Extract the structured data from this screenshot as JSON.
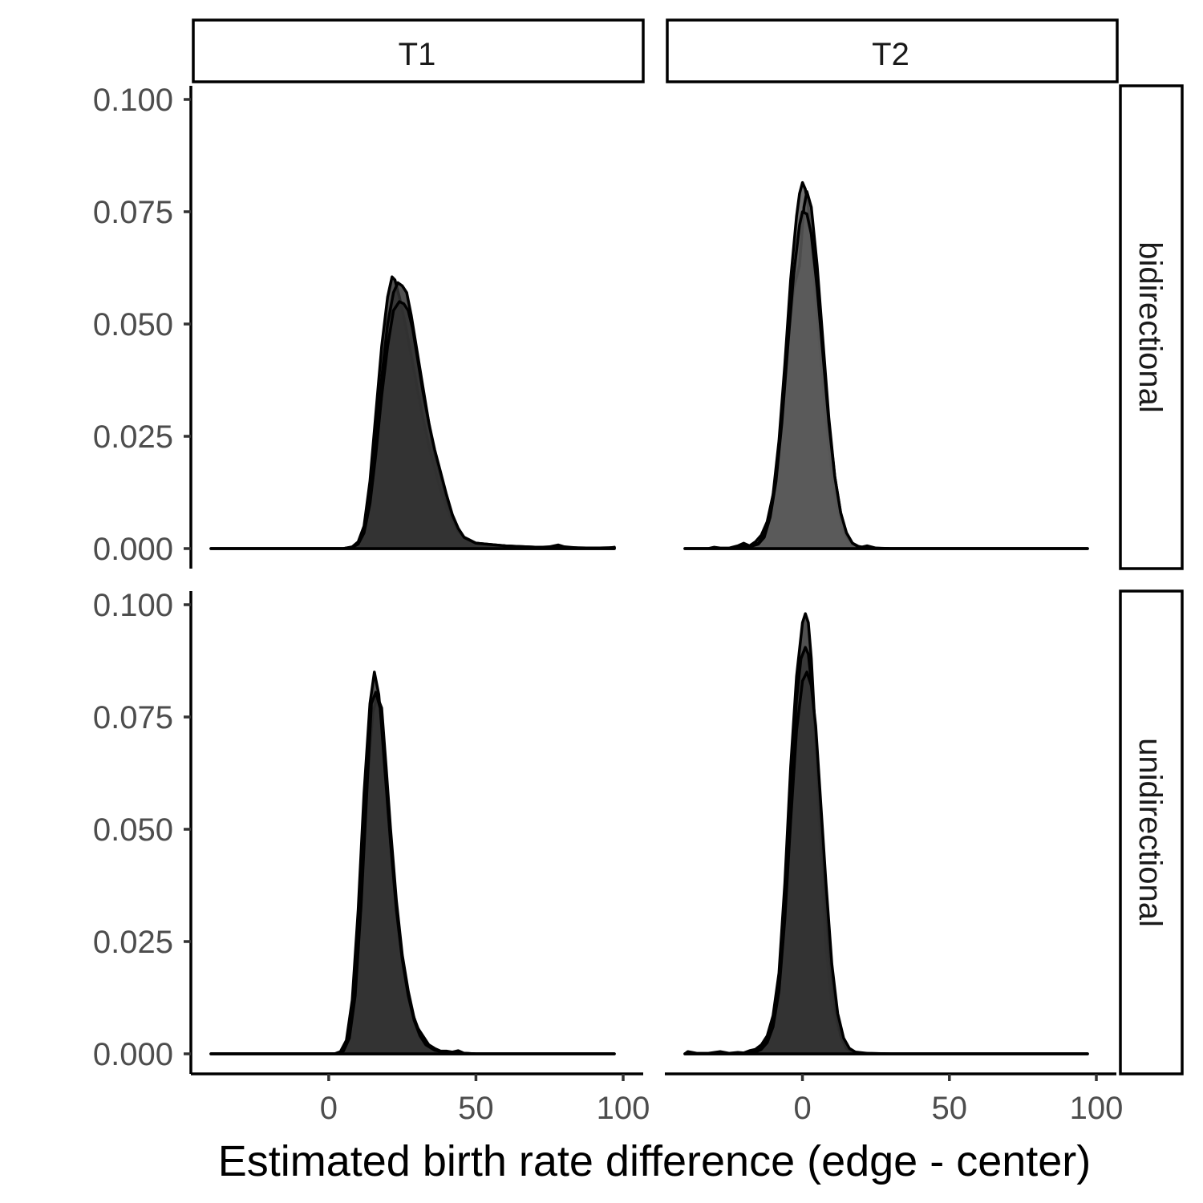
{
  "chart_data": {
    "type": "area",
    "subtype": "faceted density",
    "xlabel": "Estimated birth rate difference (edge - center)",
    "ylabel": "",
    "xlim": [
      -40,
      100
    ],
    "ylim": [
      0,
      0.1
    ],
    "x_ticks": [
      "0",
      "50",
      "100"
    ],
    "x_tick_values": [
      0,
      50,
      100
    ],
    "y_ticks": [
      "0.000",
      "0.025",
      "0.050",
      "0.075",
      "0.100"
    ],
    "y_tick_values": [
      0,
      0.025,
      0.05,
      0.075,
      0.1
    ],
    "facet_columns": [
      "T1",
      "T2"
    ],
    "facet_rows": [
      "bidirectional",
      "unidirectional"
    ],
    "grid": false,
    "legend": "none",
    "panels": [
      {
        "column": "T1",
        "row": "bidirectional",
        "fill": "#333333",
        "series": [
          {
            "x": [
              -40,
              5,
              8,
              10,
              12,
              14,
              16,
              18,
              20,
              21.5,
              22.5,
              24,
              26,
              28,
              30,
              32,
              34,
              36,
              38,
              40,
              42,
              44,
              46,
              50,
              55,
              60,
              65,
              70,
              75,
              78,
              80,
              85,
              90,
              95,
              97
            ],
            "y": [
              0,
              0,
              0.0004,
              0.0015,
              0.005,
              0.015,
              0.03,
              0.045,
              0.056,
              0.0605,
              0.0598,
              0.056,
              0.05,
              0.043,
              0.036,
              0.029,
              0.023,
              0.018,
              0.013,
              0.009,
              0.006,
              0.004,
              0.0025,
              0.0012,
              0.0008,
              0.0006,
              0.0004,
              0.0002,
              0.0004,
              0.0008,
              0.0004,
              0.0001,
              0.0001,
              0.0001,
              0.0003
            ]
          },
          {
            "x": [
              -40,
              5,
              8,
              10,
              12,
              14,
              16,
              18,
              20,
              22,
              23.5,
              25,
              26.5,
              28,
              30,
              32,
              34,
              36,
              38,
              40,
              42,
              44,
              46,
              50,
              60,
              70,
              80,
              90,
              97
            ],
            "y": [
              0,
              0,
              0.0003,
              0.0012,
              0.004,
              0.012,
              0.025,
              0.038,
              0.05,
              0.057,
              0.0592,
              0.0585,
              0.057,
              0.052,
              0.044,
              0.036,
              0.028,
              0.021,
              0.016,
              0.011,
              0.007,
              0.004,
              0.0025,
              0.0012,
              0.0006,
              0.0003,
              0.0002,
              0.0001,
              0.0002
            ]
          },
          {
            "x": [
              -40,
              5,
              8,
              10,
              12,
              14,
              16,
              18,
              20,
              22,
              24,
              25.5,
              27,
              28.5,
              30,
              32,
              34,
              36,
              38,
              40,
              42,
              44,
              46,
              50,
              60,
              70,
              80,
              90,
              97
            ],
            "y": [
              0,
              0,
              0.0003,
              0.001,
              0.0035,
              0.01,
              0.021,
              0.034,
              0.045,
              0.053,
              0.055,
              0.0545,
              0.053,
              0.049,
              0.043,
              0.035,
              0.028,
              0.022,
              0.017,
              0.012,
              0.0075,
              0.0045,
              0.0025,
              0.0012,
              0.0006,
              0.0003,
              0.0002,
              0.0001,
              0.0002
            ]
          }
        ]
      },
      {
        "column": "T2",
        "row": "bidirectional",
        "fill": "#595959",
        "series": [
          {
            "x": [
              -40,
              -32,
              -30,
              -28,
              -25,
              -22,
              -20,
              -18,
              -16,
              -14,
              -12,
              -10,
              -8,
              -6,
              -4,
              -2,
              -1,
              0,
              1,
              2,
              3,
              4,
              6,
              8,
              10,
              12,
              14,
              16,
              18,
              20,
              22,
              25,
              30,
              40,
              60,
              80,
              97
            ],
            "y": [
              0,
              0,
              0.0003,
              0.0001,
              0.0001,
              0.0006,
              0.0012,
              0.0006,
              0.0015,
              0.003,
              0.006,
              0.012,
              0.024,
              0.041,
              0.06,
              0.074,
              0.079,
              0.0815,
              0.08,
              0.076,
              0.069,
              0.06,
              0.044,
              0.029,
              0.017,
              0.009,
              0.004,
              0.0015,
              0.0006,
              0.0003,
              0.0006,
              0.0001,
              0,
              0,
              0,
              0,
              0
            ]
          },
          {
            "x": [
              -40,
              -22,
              -20,
              -18,
              -15,
              -13,
              -11,
              -9,
              -7,
              -5,
              -3,
              -1,
              0.5,
              1.5,
              3,
              5,
              7,
              9,
              11,
              13,
              15,
              17,
              19,
              22,
              30,
              60,
              97
            ],
            "y": [
              0,
              0,
              0.0006,
              0.0004,
              0.0012,
              0.003,
              0.008,
              0.016,
              0.03,
              0.046,
              0.058,
              0.063,
              0.076,
              0.0795,
              0.076,
              0.063,
              0.046,
              0.029,
              0.016,
              0.008,
              0.003,
              0.0012,
              0.0005,
              0.0001,
              0,
              0,
              0
            ]
          },
          {
            "x": [
              -40,
              -22,
              -18,
              -15,
              -13,
              -11,
              -9,
              -7,
              -5,
              -3,
              -1,
              0,
              1.5,
              3,
              5,
              7,
              9,
              11,
              13,
              15,
              17,
              19,
              22,
              30,
              97
            ],
            "y": [
              0,
              0,
              0.0004,
              0.001,
              0.0025,
              0.007,
              0.015,
              0.028,
              0.045,
              0.061,
              0.072,
              0.075,
              0.0745,
              0.07,
              0.058,
              0.043,
              0.028,
              0.016,
              0.008,
              0.0035,
              0.0012,
              0.0004,
              0.0001,
              0,
              0
            ]
          }
        ]
      },
      {
        "column": "T1",
        "row": "unidirectional",
        "fill": "#333333",
        "series": [
          {
            "x": [
              -40,
              2,
              4,
              6,
              8,
              10,
              12,
              14,
              15.5,
              17,
              18.5,
              20,
              22,
              24,
              26,
              28,
              30,
              32,
              34,
              36,
              38,
              40,
              42,
              44,
              46,
              50,
              60,
              80,
              97
            ],
            "y": [
              0,
              0,
              0.0005,
              0.003,
              0.012,
              0.032,
              0.058,
              0.078,
              0.085,
              0.08,
              0.068,
              0.055,
              0.038,
              0.025,
              0.016,
              0.01,
              0.006,
              0.004,
              0.002,
              0.0012,
              0.0006,
              0.0006,
              0.0004,
              0.0007,
              0.0001,
              0,
              0,
              0,
              0
            ]
          },
          {
            "x": [
              -40,
              3,
              5,
              7,
              9,
              11,
              13,
              15,
              16.5,
              18,
              19.5,
              21,
              23,
              25,
              27,
              29,
              31,
              33,
              35,
              38,
              42,
              50,
              97
            ],
            "y": [
              0,
              0,
              0.0008,
              0.004,
              0.014,
              0.034,
              0.06,
              0.076,
              0.0795,
              0.077,
              0.064,
              0.05,
              0.034,
              0.022,
              0.014,
              0.008,
              0.0045,
              0.0025,
              0.0012,
              0.0005,
              0.0002,
              0,
              0
            ]
          },
          {
            "x": [
              -40,
              3,
              5,
              7,
              9,
              11,
              13,
              14.5,
              16,
              17.5,
              19,
              21,
              23,
              25,
              27,
              29,
              31,
              33,
              36,
              40,
              50,
              97
            ],
            "y": [
              0,
              0,
              0.0006,
              0.0035,
              0.013,
              0.033,
              0.059,
              0.078,
              0.0805,
              0.077,
              0.064,
              0.047,
              0.032,
              0.021,
              0.013,
              0.0075,
              0.004,
              0.002,
              0.0008,
              0.0003,
              0,
              0
            ]
          }
        ]
      },
      {
        "column": "T2",
        "row": "unidirectional",
        "fill": "#333333",
        "series": [
          {
            "x": [
              -40,
              -39,
              -36,
              -32,
              -28,
              -25,
              -22,
              -20,
              -18,
              -16,
              -14,
              -12,
              -10,
              -8,
              -6,
              -4,
              -2,
              0,
              1,
              2,
              3,
              4,
              6,
              8,
              10,
              11,
              12,
              14,
              16,
              18,
              20,
              25,
              40,
              97
            ],
            "y": [
              0,
              0.0005,
              0.0001,
              0.0001,
              0.0005,
              0.0001,
              0.0003,
              0.0002,
              0.0007,
              0.001,
              0.002,
              0.004,
              0.0085,
              0.018,
              0.038,
              0.064,
              0.084,
              0.096,
              0.098,
              0.096,
              0.088,
              0.076,
              0.048,
              0.024,
              0.011,
              0.0085,
              0.006,
              0.0025,
              0.001,
              0.0003,
              0.0001,
              0,
              0,
              0
            ]
          },
          {
            "x": [
              -40,
              -20,
              -16,
              -14,
              -12,
              -10,
              -8,
              -6,
              -4,
              -2,
              -0.5,
              1,
              2,
              3.5,
              5,
              7,
              9,
              11,
              13,
              15,
              17,
              20,
              30,
              97
            ],
            "y": [
              0,
              0,
              0.0006,
              0.0012,
              0.003,
              0.007,
              0.016,
              0.034,
              0.058,
              0.079,
              0.088,
              0.0905,
              0.089,
              0.08,
              0.066,
              0.044,
              0.024,
              0.011,
              0.004,
              0.0012,
              0.0004,
              0.0001,
              0,
              0
            ]
          },
          {
            "x": [
              -40,
              -20,
              -16,
              -14,
              -12,
              -10,
              -8,
              -6,
              -4,
              -2,
              0,
              1.5,
              3,
              4.5,
              6,
              8,
              10,
              12,
              14,
              16,
              18,
              22,
              30,
              97
            ],
            "y": [
              0,
              0,
              0.0004,
              0.001,
              0.0025,
              0.006,
              0.014,
              0.03,
              0.052,
              0.072,
              0.083,
              0.085,
              0.082,
              0.073,
              0.058,
              0.038,
              0.02,
              0.009,
              0.0035,
              0.0012,
              0.0004,
              0.0001,
              0,
              0
            ]
          }
        ]
      }
    ]
  }
}
